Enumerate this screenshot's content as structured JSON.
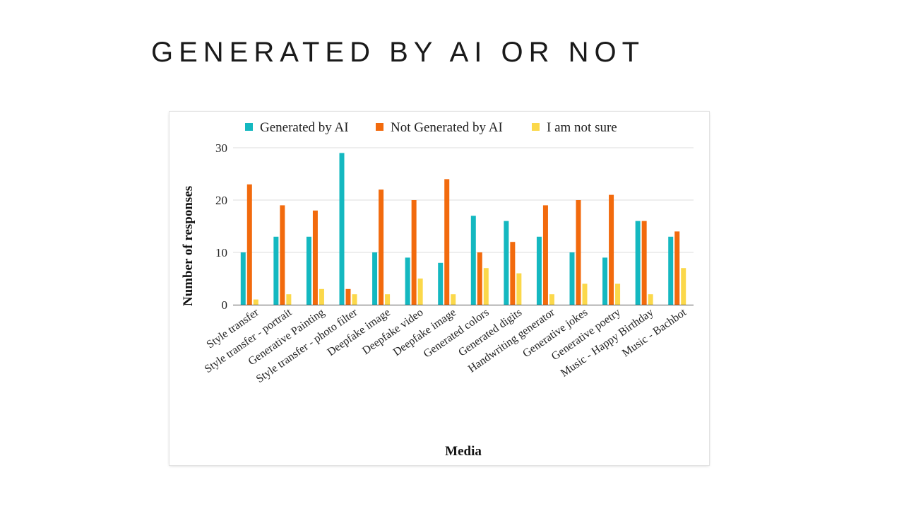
{
  "slide": {
    "title": "GENERATED BY AI OR NOT"
  },
  "chart_data": {
    "type": "bar",
    "title": "",
    "xlabel": "Media",
    "ylabel": "Number of responses",
    "ylim": [
      0,
      30
    ],
    "yticks": [
      0,
      10,
      20,
      30
    ],
    "grid": true,
    "legend_position": "top",
    "categories": [
      "Style transfer",
      "Style transfer - portrait",
      "Generative Painting",
      "Style transfer - photo filter",
      "Deepfake image",
      "Deepfake video",
      "Deepfake image",
      "Generated colors",
      "Generated digits",
      "Handwriting generator",
      "Generative jokes",
      "Generative poetry",
      "Music - Happy Birthday",
      "Music - Bachbot"
    ],
    "series": [
      {
        "name": "Generated by AI",
        "color": "#14b8c0",
        "values": [
          10,
          13,
          13,
          29,
          10,
          9,
          8,
          17,
          16,
          13,
          10,
          9,
          16,
          13
        ]
      },
      {
        "name": "Not Generated by AI",
        "color": "#f26a0d",
        "values": [
          23,
          19,
          18,
          3,
          22,
          20,
          24,
          10,
          12,
          19,
          20,
          21,
          16,
          14
        ]
      },
      {
        "name": "I am not sure",
        "color": "#fbd84a",
        "values": [
          1,
          2,
          3,
          2,
          2,
          5,
          2,
          7,
          6,
          2,
          4,
          4,
          2,
          7
        ]
      }
    ]
  }
}
